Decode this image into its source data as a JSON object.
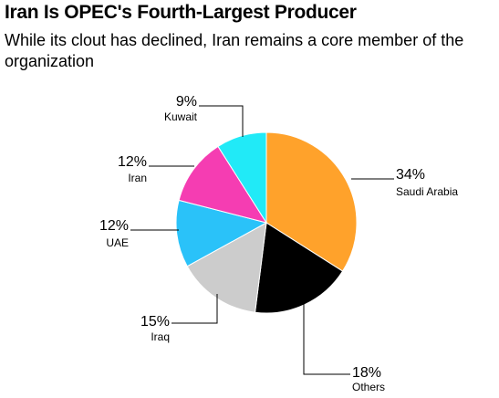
{
  "header": {
    "title": "Iran Is OPEC's Fourth-Largest Producer",
    "subtitle": "While its clout has declined, Iran remains a core member of the organization"
  },
  "chart_data": {
    "type": "pie",
    "title": "Iran Is OPEC's Fourth-Largest Producer",
    "subtitle": "While its clout has declined, Iran remains a core member of the organization",
    "unit": "%",
    "slices": [
      {
        "name": "Saudi Arabia",
        "value": 34,
        "label": "34%",
        "color": "#FFA22B"
      },
      {
        "name": "Others",
        "value": 18,
        "label": "18%",
        "color": "#000000"
      },
      {
        "name": "Iraq",
        "value": 15,
        "label": "15%",
        "color": "#CCCCCC"
      },
      {
        "name": "UAE",
        "value": 12,
        "label": "12%",
        "color": "#2AC2F9"
      },
      {
        "name": "Iran",
        "value": 12,
        "label": "12%",
        "color": "#F53DB2"
      },
      {
        "name": "Kuwait",
        "value": 9,
        "label": "9%",
        "color": "#21EAF7"
      }
    ]
  }
}
